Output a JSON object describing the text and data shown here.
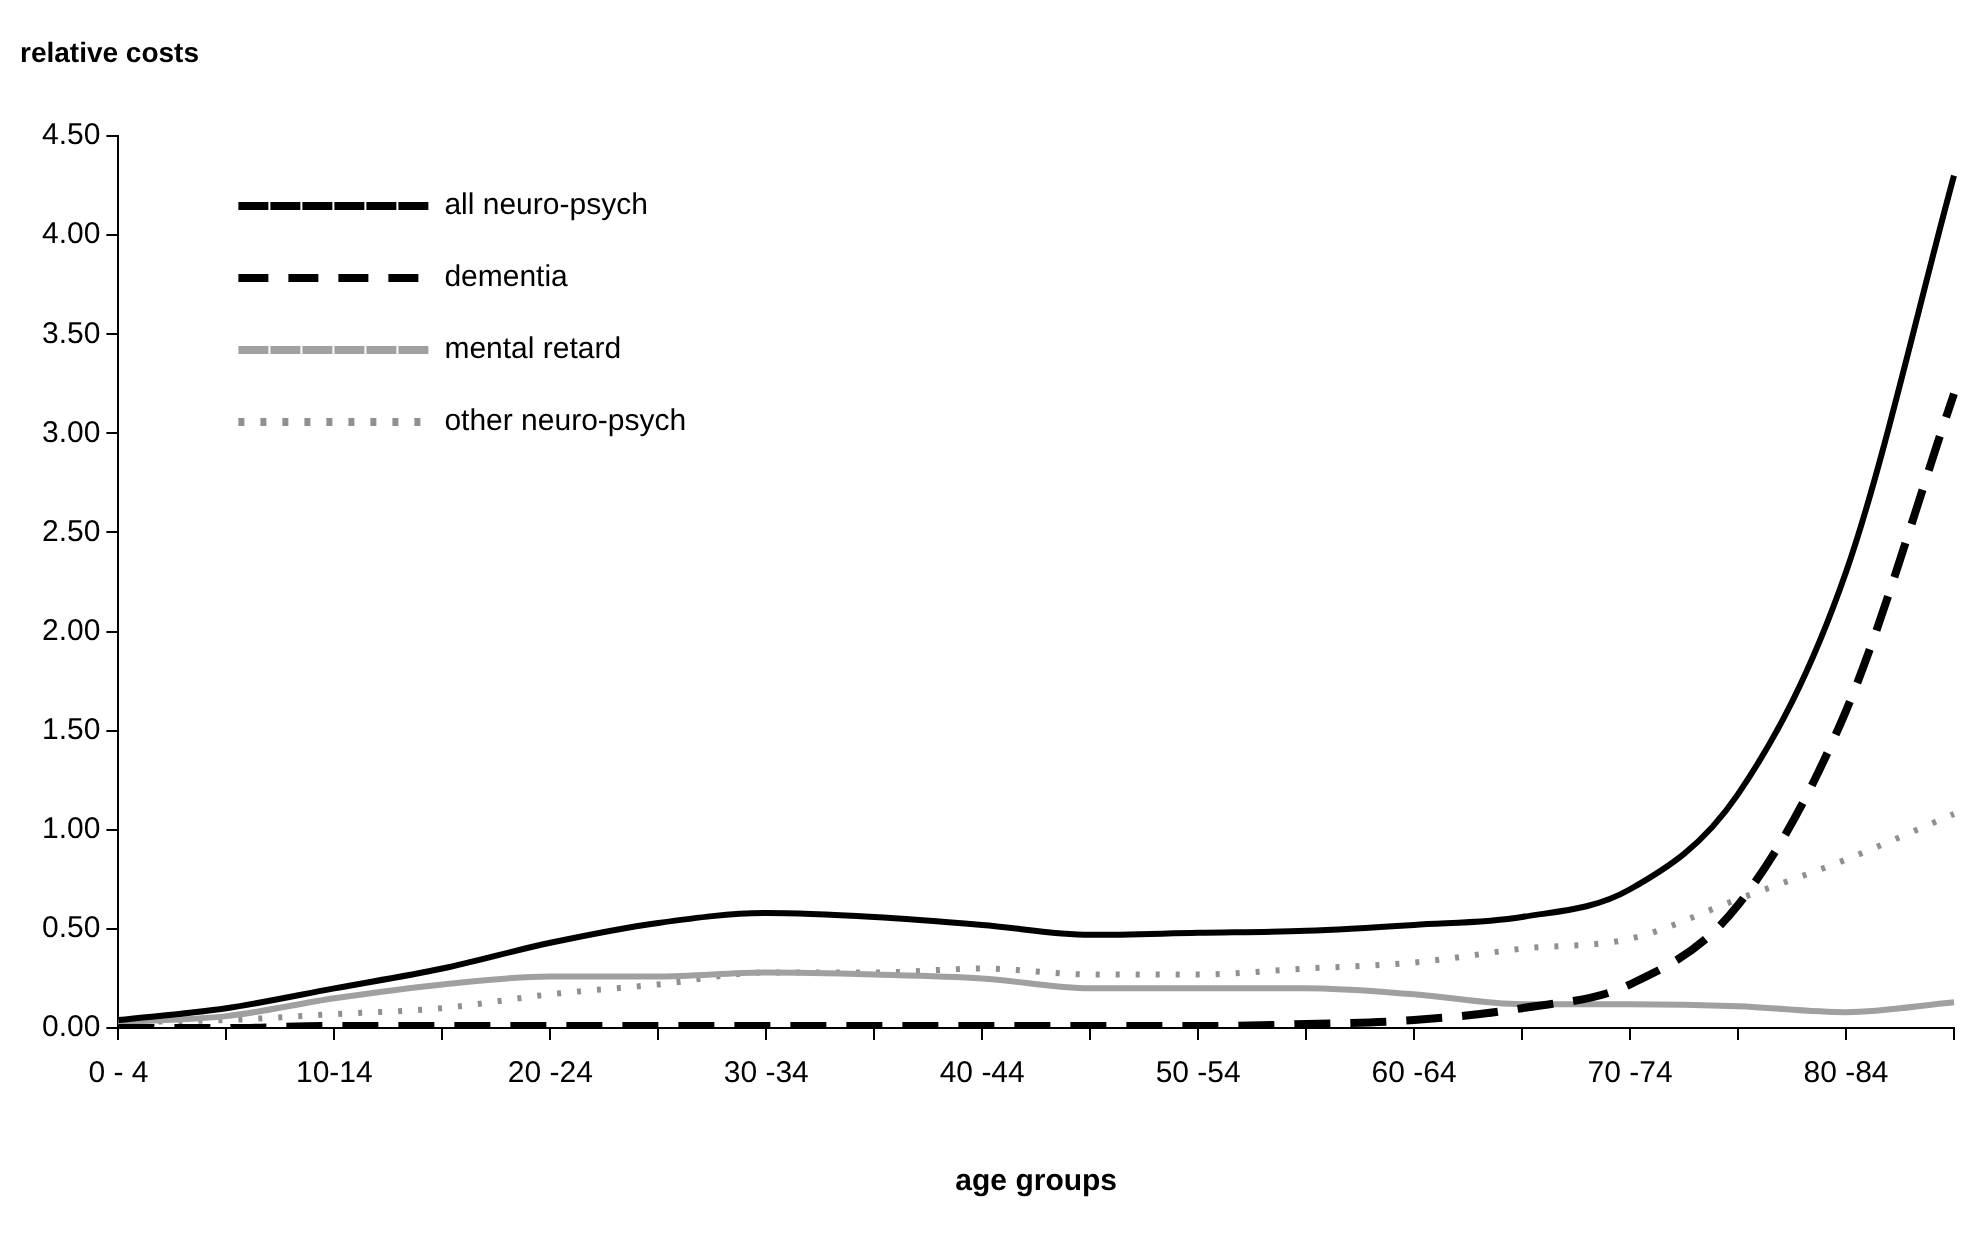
{
  "chart_data": {
    "type": "line",
    "ylabel": "relative costs",
    "xlabel": "age groups",
    "categories": [
      "0 - 4",
      null,
      "10-14",
      null,
      "20 -24",
      null,
      "30 -34",
      null,
      "40 -44",
      null,
      "50 -54",
      null,
      "60 -64",
      null,
      "70 -74",
      null,
      "80 -84",
      null
    ],
    "ylim": [
      0,
      4.5
    ],
    "yticks": [
      {
        "value": 0,
        "label": "0.00"
      },
      {
        "value": 0.5,
        "label": "0.50"
      },
      {
        "value": 1,
        "label": "1.00"
      },
      {
        "value": 1.5,
        "label": "1.50"
      },
      {
        "value": 2,
        "label": "2.00"
      },
      {
        "value": 2.5,
        "label": "2.50"
      },
      {
        "value": 3,
        "label": "3.00"
      },
      {
        "value": 3.5,
        "label": "3.50"
      },
      {
        "value": 4,
        "label": "4.00"
      },
      {
        "value": 4.5,
        "label": "4.50"
      }
    ],
    "grid": false,
    "legend": "top left",
    "marker": "none",
    "series": [
      {
        "name": "all neuro-psych",
        "color": "#000000",
        "line_style": "solid",
        "values": [
          0.04,
          0.1,
          0.2,
          0.3,
          0.43,
          0.53,
          0.58,
          0.56,
          0.52,
          0.47,
          0.48,
          0.49,
          0.52,
          0.56,
          0.7,
          1.18,
          2.3,
          4.3
        ]
      },
      {
        "name": "dementia",
        "color": "#000000",
        "line_style": "dashed",
        "values": [
          0,
          0,
          0.01,
          0.01,
          0.01,
          0.01,
          0.01,
          0.01,
          0.01,
          0.01,
          0.01,
          0.02,
          0.04,
          0.1,
          0.22,
          0.62,
          1.6,
          3.2
        ]
      },
      {
        "name": "mental retard",
        "color": "#a0a0a0",
        "line_style": "solid",
        "values": [
          0.03,
          0.06,
          0.15,
          0.22,
          0.26,
          0.26,
          0.28,
          0.27,
          0.25,
          0.2,
          0.2,
          0.2,
          0.17,
          0.12,
          0.12,
          0.11,
          0.08,
          0.13
        ]
      },
      {
        "name": "other neuro-psych",
        "color": "#909090",
        "line_style": "dotted",
        "values": [
          0.03,
          0.04,
          0.07,
          0.1,
          0.17,
          0.22,
          0.28,
          0.28,
          0.3,
          0.27,
          0.27,
          0.3,
          0.33,
          0.4,
          0.45,
          0.65,
          0.85,
          1.08
        ]
      }
    ]
  }
}
